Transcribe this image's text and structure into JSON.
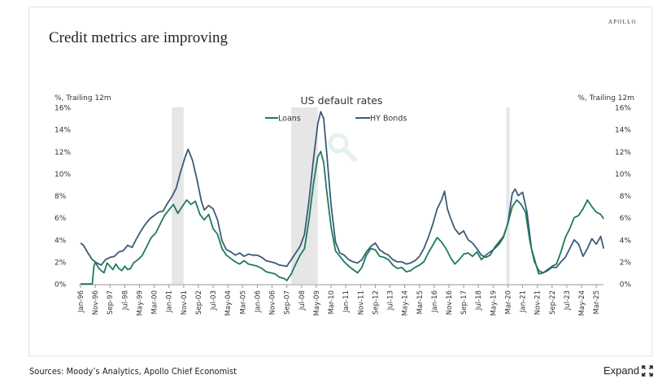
{
  "page": {
    "slide_title": "Credit metrics are improving",
    "brand": "APOLLO",
    "sources": "Sources: Moody’s Analytics, Apollo Chief Economist",
    "expand_label": "Expand",
    "expand_icon": "expand-arrows-icon",
    "watermark_icon": "magnifier-icon"
  },
  "chart_data": {
    "type": "line",
    "title": "US default rates",
    "ylabel_left": "%, Trailing 12m",
    "ylabel_right": "%, Trailing 12m",
    "xlabel": "",
    "ylim": [
      0,
      16
    ],
    "yticks": [
      0,
      2,
      4,
      6,
      8,
      10,
      12,
      14,
      16
    ],
    "ytick_suffix": "%",
    "x_start": "1996-01",
    "x_end": "2025-08",
    "xtick_labels": [
      "Jan-96",
      "Nov-96",
      "Sep-97",
      "Jul-98",
      "May-99",
      "Mar-00",
      "Jan-01",
      "Nov-01",
      "Sep-02",
      "Jul-03",
      "May-04",
      "Mar-05",
      "Jan-06",
      "Nov-06",
      "Sep-07",
      "Jul-08",
      "May-09",
      "Mar-10",
      "Jan-11",
      "Nov-11",
      "Sep-12",
      "Jul-13",
      "May-14",
      "Mar-15",
      "Jan-16",
      "Nov-16",
      "Sep-17",
      "Jul-18",
      "May-19",
      "Mar-20",
      "Jan-21",
      "Nov-21",
      "Sep-22",
      "Jul-23",
      "May-24",
      "Mar-25"
    ],
    "xtick_interval_months": 10,
    "grid": false,
    "legend_position": "top-center",
    "recessions": [
      {
        "start": "2001-03",
        "end": "2001-11"
      },
      {
        "start": "2007-12",
        "end": "2009-06"
      },
      {
        "start": "2020-02",
        "end": "2020-04"
      }
    ],
    "colors": {
      "loans": "#1f7a5c",
      "hy_bonds": "#3d5a7a",
      "recession": "#e6e6e6"
    },
    "series": [
      {
        "name": "Loans",
        "key": "loans",
        "points": [
          [
            "1996-01",
            0.0
          ],
          [
            "1996-06",
            0.0
          ],
          [
            "1996-09",
            0.0
          ],
          [
            "1996-10",
            1.5
          ],
          [
            "1996-11",
            2.0
          ],
          [
            "1997-01",
            1.5
          ],
          [
            "1997-03",
            1.2
          ],
          [
            "1997-05",
            1.0
          ],
          [
            "1997-07",
            1.9
          ],
          [
            "1997-09",
            1.6
          ],
          [
            "1997-11",
            1.3
          ],
          [
            "1998-01",
            1.8
          ],
          [
            "1998-03",
            1.4
          ],
          [
            "1998-05",
            1.2
          ],
          [
            "1998-07",
            1.6
          ],
          [
            "1998-09",
            1.3
          ],
          [
            "1998-11",
            1.4
          ],
          [
            "1999-01",
            1.9
          ],
          [
            "1999-04",
            2.2
          ],
          [
            "1999-07",
            2.6
          ],
          [
            "1999-10",
            3.4
          ],
          [
            "2000-01",
            4.2
          ],
          [
            "2000-04",
            4.6
          ],
          [
            "2000-07",
            5.4
          ],
          [
            "2000-10",
            6.2
          ],
          [
            "2001-01",
            6.7
          ],
          [
            "2001-04",
            7.2
          ],
          [
            "2001-07",
            6.4
          ],
          [
            "2001-10",
            7.0
          ],
          [
            "2002-01",
            7.6
          ],
          [
            "2002-04",
            7.2
          ],
          [
            "2002-07",
            7.5
          ],
          [
            "2002-10",
            6.3
          ],
          [
            "2003-01",
            5.8
          ],
          [
            "2003-04",
            6.3
          ],
          [
            "2003-07",
            5.0
          ],
          [
            "2003-10",
            4.5
          ],
          [
            "2004-01",
            3.2
          ],
          [
            "2004-04",
            2.6
          ],
          [
            "2004-07",
            2.3
          ],
          [
            "2004-10",
            2.0
          ],
          [
            "2005-01",
            1.8
          ],
          [
            "2005-04",
            2.1
          ],
          [
            "2005-07",
            1.8
          ],
          [
            "2005-10",
            1.7
          ],
          [
            "2006-01",
            1.6
          ],
          [
            "2006-04",
            1.4
          ],
          [
            "2006-07",
            1.1
          ],
          [
            "2006-10",
            1.0
          ],
          [
            "2007-01",
            0.9
          ],
          [
            "2007-04",
            0.6
          ],
          [
            "2007-07",
            0.5
          ],
          [
            "2007-09",
            0.3
          ],
          [
            "2007-12",
            0.9
          ],
          [
            "2008-03",
            1.8
          ],
          [
            "2008-06",
            2.6
          ],
          [
            "2008-09",
            3.2
          ],
          [
            "2008-12",
            5.8
          ],
          [
            "2009-03",
            9.0
          ],
          [
            "2009-06",
            11.5
          ],
          [
            "2009-08",
            12.0
          ],
          [
            "2009-10",
            11.0
          ],
          [
            "2009-12",
            8.5
          ],
          [
            "2010-03",
            5.2
          ],
          [
            "2010-06",
            3.0
          ],
          [
            "2010-09",
            2.5
          ],
          [
            "2010-12",
            2.0
          ],
          [
            "2011-03",
            1.6
          ],
          [
            "2011-06",
            1.3
          ],
          [
            "2011-09",
            1.0
          ],
          [
            "2011-12",
            1.5
          ],
          [
            "2012-03",
            2.6
          ],
          [
            "2012-06",
            3.2
          ],
          [
            "2012-09",
            3.1
          ],
          [
            "2012-12",
            2.5
          ],
          [
            "2013-03",
            2.4
          ],
          [
            "2013-06",
            2.2
          ],
          [
            "2013-09",
            1.7
          ],
          [
            "2013-12",
            1.4
          ],
          [
            "2014-03",
            1.5
          ],
          [
            "2014-06",
            1.1
          ],
          [
            "2014-09",
            1.2
          ],
          [
            "2014-12",
            1.5
          ],
          [
            "2015-03",
            1.7
          ],
          [
            "2015-06",
            2.0
          ],
          [
            "2015-09",
            2.8
          ],
          [
            "2015-12",
            3.5
          ],
          [
            "2016-03",
            4.2
          ],
          [
            "2016-06",
            3.8
          ],
          [
            "2016-09",
            3.2
          ],
          [
            "2016-12",
            2.4
          ],
          [
            "2017-03",
            1.8
          ],
          [
            "2017-06",
            2.2
          ],
          [
            "2017-09",
            2.7
          ],
          [
            "2017-12",
            2.8
          ],
          [
            "2018-03",
            2.5
          ],
          [
            "2018-06",
            2.9
          ],
          [
            "2018-09",
            2.2
          ],
          [
            "2018-12",
            2.6
          ],
          [
            "2019-03",
            2.9
          ],
          [
            "2019-06",
            3.2
          ],
          [
            "2019-09",
            3.6
          ],
          [
            "2019-12",
            4.2
          ],
          [
            "2020-03",
            5.5
          ],
          [
            "2020-06",
            7.0
          ],
          [
            "2020-09",
            7.6
          ],
          [
            "2020-12",
            7.2
          ],
          [
            "2021-03",
            6.5
          ],
          [
            "2021-06",
            3.8
          ],
          [
            "2021-09",
            2.0
          ],
          [
            "2021-12",
            1.2
          ],
          [
            "2022-03",
            1.0
          ],
          [
            "2022-06",
            1.3
          ],
          [
            "2022-09",
            1.6
          ],
          [
            "2022-12",
            1.8
          ],
          [
            "2023-03",
            2.9
          ],
          [
            "2023-06",
            4.2
          ],
          [
            "2023-09",
            5.0
          ],
          [
            "2023-12",
            6.0
          ],
          [
            "2024-03",
            6.2
          ],
          [
            "2024-06",
            6.8
          ],
          [
            "2024-09",
            7.6
          ],
          [
            "2024-12",
            7.0
          ],
          [
            "2025-03",
            6.5
          ],
          [
            "2025-06",
            6.3
          ],
          [
            "2025-08",
            5.9
          ]
        ]
      },
      {
        "name": "HY Bonds",
        "key": "hy_bonds",
        "points": [
          [
            "1996-01",
            3.7
          ],
          [
            "1996-03",
            3.5
          ],
          [
            "1996-06",
            2.8
          ],
          [
            "1996-09",
            2.2
          ],
          [
            "1996-12",
            1.9
          ],
          [
            "1997-03",
            1.7
          ],
          [
            "1997-06",
            2.2
          ],
          [
            "1997-09",
            2.4
          ],
          [
            "1997-12",
            2.5
          ],
          [
            "1998-03",
            2.9
          ],
          [
            "1998-06",
            3.0
          ],
          [
            "1998-09",
            3.5
          ],
          [
            "1998-12",
            3.3
          ],
          [
            "1999-03",
            4.1
          ],
          [
            "1999-06",
            4.8
          ],
          [
            "1999-09",
            5.4
          ],
          [
            "1999-12",
            5.9
          ],
          [
            "2000-03",
            6.2
          ],
          [
            "2000-06",
            6.5
          ],
          [
            "2000-09",
            6.6
          ],
          [
            "2000-12",
            7.3
          ],
          [
            "2001-03",
            7.9
          ],
          [
            "2001-06",
            8.7
          ],
          [
            "2001-09",
            10.2
          ],
          [
            "2001-12",
            11.5
          ],
          [
            "2002-02",
            12.2
          ],
          [
            "2002-05",
            11.2
          ],
          [
            "2002-08",
            9.5
          ],
          [
            "2002-11",
            7.5
          ],
          [
            "2003-01",
            6.7
          ],
          [
            "2003-04",
            7.1
          ],
          [
            "2003-07",
            6.8
          ],
          [
            "2003-10",
            5.8
          ],
          [
            "2004-01",
            3.9
          ],
          [
            "2004-04",
            3.1
          ],
          [
            "2004-07",
            2.9
          ],
          [
            "2004-10",
            2.6
          ],
          [
            "2005-01",
            2.8
          ],
          [
            "2005-04",
            2.5
          ],
          [
            "2005-07",
            2.7
          ],
          [
            "2005-10",
            2.6
          ],
          [
            "2006-01",
            2.6
          ],
          [
            "2006-04",
            2.4
          ],
          [
            "2006-07",
            2.1
          ],
          [
            "2006-10",
            2.0
          ],
          [
            "2007-01",
            1.9
          ],
          [
            "2007-04",
            1.7
          ],
          [
            "2007-09",
            1.6
          ],
          [
            "2007-12",
            2.2
          ],
          [
            "2008-03",
            2.8
          ],
          [
            "2008-06",
            3.4
          ],
          [
            "2008-09",
            4.5
          ],
          [
            "2008-12",
            7.5
          ],
          [
            "2009-03",
            11.2
          ],
          [
            "2009-06",
            14.5
          ],
          [
            "2009-08",
            15.6
          ],
          [
            "2009-10",
            15.0
          ],
          [
            "2009-12",
            12.0
          ],
          [
            "2010-03",
            7.2
          ],
          [
            "2010-06",
            3.8
          ],
          [
            "2010-09",
            2.8
          ],
          [
            "2010-12",
            2.6
          ],
          [
            "2011-03",
            2.2
          ],
          [
            "2011-06",
            2.0
          ],
          [
            "2011-09",
            1.9
          ],
          [
            "2011-12",
            2.2
          ],
          [
            "2012-03",
            2.9
          ],
          [
            "2012-06",
            3.4
          ],
          [
            "2012-09",
            3.7
          ],
          [
            "2012-12",
            3.1
          ],
          [
            "2013-03",
            2.8
          ],
          [
            "2013-06",
            2.6
          ],
          [
            "2013-09",
            2.2
          ],
          [
            "2013-12",
            2.0
          ],
          [
            "2014-03",
            2.0
          ],
          [
            "2014-06",
            1.8
          ],
          [
            "2014-09",
            1.9
          ],
          [
            "2014-12",
            2.1
          ],
          [
            "2015-03",
            2.5
          ],
          [
            "2015-06",
            3.2
          ],
          [
            "2015-09",
            4.2
          ],
          [
            "2015-12",
            5.4
          ],
          [
            "2016-03",
            6.8
          ],
          [
            "2016-06",
            7.6
          ],
          [
            "2016-08",
            8.4
          ],
          [
            "2016-10",
            6.8
          ],
          [
            "2016-12",
            6.0
          ],
          [
            "2017-03",
            5.0
          ],
          [
            "2017-06",
            4.5
          ],
          [
            "2017-09",
            4.8
          ],
          [
            "2017-12",
            4.0
          ],
          [
            "2018-03",
            3.7
          ],
          [
            "2018-06",
            3.2
          ],
          [
            "2018-09",
            2.6
          ],
          [
            "2018-12",
            2.4
          ],
          [
            "2019-03",
            2.6
          ],
          [
            "2019-06",
            3.3
          ],
          [
            "2019-09",
            3.8
          ],
          [
            "2019-12",
            4.3
          ],
          [
            "2020-03",
            5.5
          ],
          [
            "2020-06",
            8.2
          ],
          [
            "2020-08",
            8.6
          ],
          [
            "2020-10",
            8.0
          ],
          [
            "2021-01",
            8.3
          ],
          [
            "2021-04",
            6.5
          ],
          [
            "2021-07",
            3.2
          ],
          [
            "2021-10",
            1.8
          ],
          [
            "2021-12",
            0.9
          ],
          [
            "2022-03",
            1.0
          ],
          [
            "2022-06",
            1.2
          ],
          [
            "2022-09",
            1.5
          ],
          [
            "2022-12",
            1.5
          ],
          [
            "2023-03",
            2.0
          ],
          [
            "2023-06",
            2.4
          ],
          [
            "2023-09",
            3.2
          ],
          [
            "2023-12",
            4.0
          ],
          [
            "2024-03",
            3.6
          ],
          [
            "2024-06",
            2.5
          ],
          [
            "2024-09",
            3.2
          ],
          [
            "2024-12",
            4.1
          ],
          [
            "2025-03",
            3.6
          ],
          [
            "2025-06",
            4.3
          ],
          [
            "2025-08",
            3.2
          ]
        ]
      }
    ]
  }
}
